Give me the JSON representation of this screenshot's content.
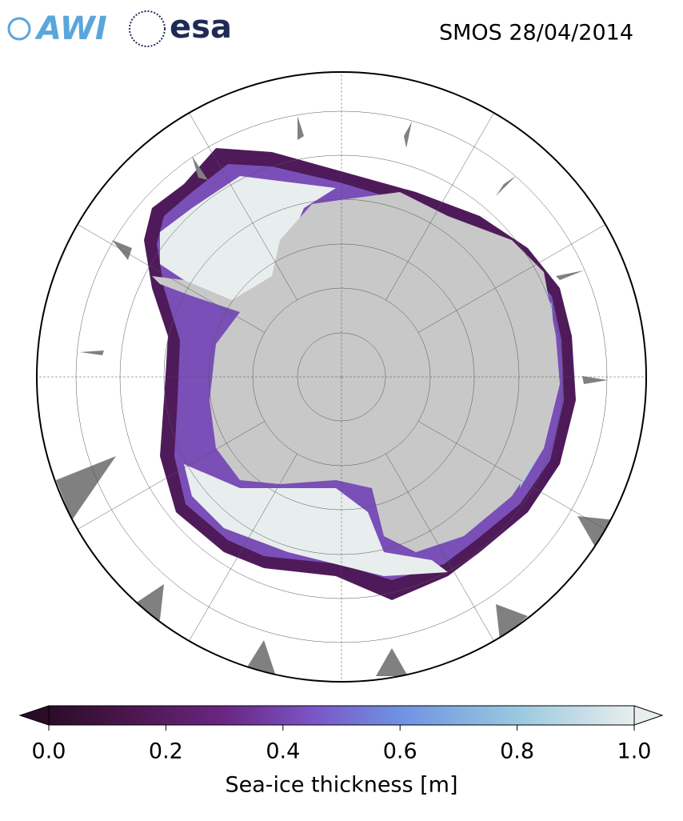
{
  "header": {
    "logos": [
      "AWI",
      "esa"
    ],
    "title": "SMOS 28/04/2014"
  },
  "colorbar": {
    "label": "Sea-ice thickness [m]",
    "lim": [
      0,
      1
    ],
    "ticks": [
      {
        "value": 0,
        "label": "0.0"
      },
      0.2,
      0.4,
      0.6,
      0.8,
      {
        "value": 1,
        "label": "1.0"
      }
    ]
  }
}
